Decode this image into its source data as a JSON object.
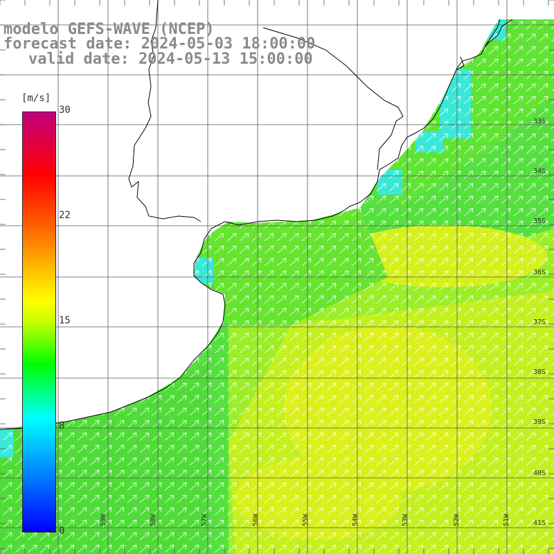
{
  "title": {
    "model": "modelo GEFS-WAVE (NCEP)",
    "forecast": "forecast date: 2024-05-03 18:00:00",
    "valid": "valid date: 2024-05-13 15:00:00"
  },
  "colorbar": {
    "unit": "[m/s]",
    "ticks": [
      "30",
      "22",
      "15",
      "8",
      "0"
    ],
    "min": 0,
    "max": 30,
    "colors": [
      "#0000ff",
      "#00a0ff",
      "#00ffff",
      "#00e060",
      "#00ff00",
      "#a0ff00",
      "#ffff00",
      "#ff8000",
      "#ff0000",
      "#c00060"
    ]
  },
  "lon_labels": [
    "59W",
    "58W",
    "57W",
    "56W",
    "55W",
    "54W",
    "53W",
    "52W",
    "51W"
  ],
  "lat_labels": [
    "33S",
    "34S",
    "35S",
    "36S",
    "37S",
    "38S",
    "39S",
    "40S",
    "41S"
  ],
  "field": {
    "variable": "wind speed",
    "direction": "northeast",
    "colors": {
      "cyan": "#33e6e0",
      "green": "#33dd22",
      "lime": "#88ee22",
      "yellowgreen": "#c8f020",
      "yellow": "#e8f018"
    }
  }
}
